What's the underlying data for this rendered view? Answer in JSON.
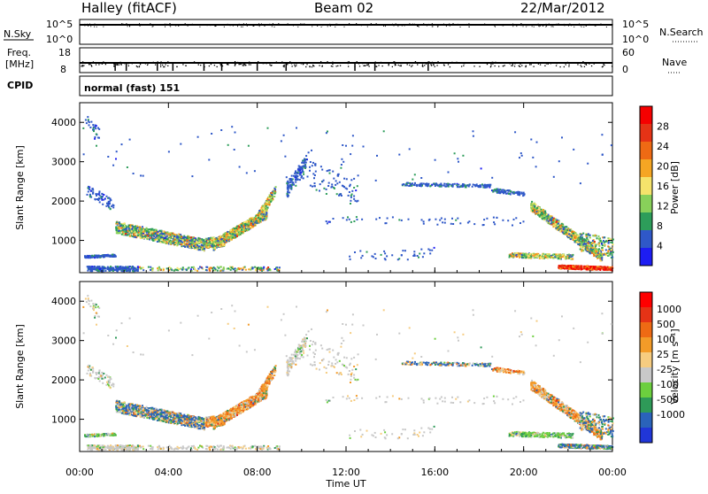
{
  "header": {
    "station": "Halley (fitACF)",
    "beam": "Beam 02",
    "date": "22/Mar/2012"
  },
  "strip_panels": {
    "nsky": {
      "label": "N.Sky",
      "ticks": [
        "10^5",
        "10^0"
      ],
      "right_label": "N.Search",
      "right_ticks": [
        "10^5",
        "10^0"
      ]
    },
    "freq": {
      "label_line1": "Freq.",
      "label_line2": "[MHz]",
      "ticks": [
        "18",
        "8"
      ],
      "right_label": "Nave",
      "right_ticks": [
        "60",
        "0"
      ]
    },
    "cpid": {
      "label": "CPID",
      "mode_text": "normal (fast) 151"
    }
  },
  "colors": {
    "power_scale": [
      "#1d1df2",
      "#2f58c8",
      "#2d9d5a",
      "#88d05a",
      "#f5e36b",
      "#f5a623",
      "#ee6a14",
      "#e53316",
      "#f50000"
    ],
    "velocity_scale": [
      "#2036d8",
      "#2a63ba",
      "#2e9a58",
      "#6ccf3e",
      "#c8c8c8",
      "#f6cc80",
      "#f39b28",
      "#ee6a14",
      "#e53316",
      "#ff0000"
    ]
  },
  "chart_data": [
    {
      "type": "heatmap",
      "name": "power",
      "ylabel": "Slant Range [km]",
      "ylim": [
        180,
        4500
      ],
      "yticks": [
        1000,
        2000,
        3000,
        4000
      ],
      "colorbar_label": "Power [dB]",
      "colorbar_ticks": [
        "4",
        "8",
        "12",
        "16",
        "20",
        "24",
        "28"
      ],
      "colorbar_range": [
        0,
        32
      ]
    },
    {
      "type": "heatmap",
      "name": "velocity",
      "ylabel": "Slant Range [km]",
      "xlabel": "Time UT",
      "ylim": [
        180,
        4500
      ],
      "yticks": [
        1000,
        2000,
        3000,
        4000
      ],
      "xlim_hours": [
        0,
        24
      ],
      "xticks": [
        "00:00",
        "04:00",
        "08:00",
        "12:00",
        "16:00",
        "20:00",
        "00:00"
      ],
      "colorbar_label": "Velocity [m s⁻¹]",
      "colorbar_ticks": [
        "1000",
        "500",
        "100",
        "25",
        "-25",
        "-100",
        "-500",
        "-1000"
      ]
    }
  ]
}
